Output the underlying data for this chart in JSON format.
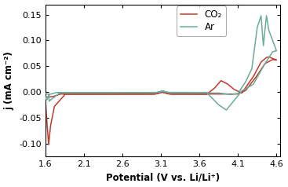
{
  "title": "",
  "xlabel": "Potential (V vs. Li/Li⁺)",
  "ylabel": "j (mA cm⁻²)",
  "xlim": [
    1.6,
    4.65
  ],
  "ylim": [
    -0.125,
    0.17
  ],
  "xticks": [
    1.6,
    2.1,
    2.6,
    3.1,
    3.6,
    4.1,
    4.6
  ],
  "yticks": [
    -0.1,
    -0.05,
    0.0,
    0.05,
    0.1,
    0.15
  ],
  "ar_color": "#6aab9c",
  "co2_color": "#c0392b",
  "legend_labels": [
    "Ar",
    "CO₂"
  ],
  "figsize": [
    3.67,
    2.38
  ],
  "dpi": 100
}
